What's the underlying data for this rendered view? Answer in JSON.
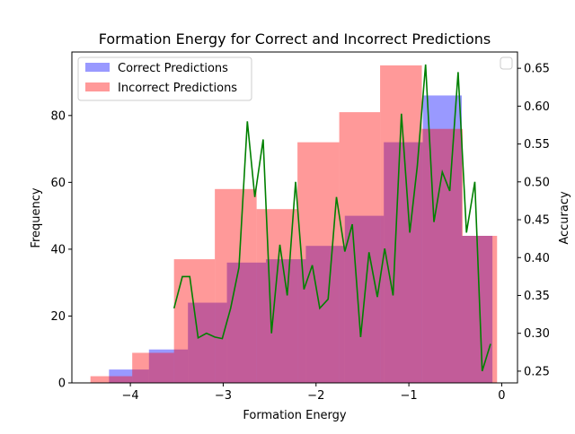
{
  "chart_data": {
    "type": "bar",
    "title": "Formation Energy for Correct and Incorrect Predictions",
    "xlabel": "Formation Energy",
    "ylabel": "Frequency",
    "y2label": "Accuracy",
    "xlim": [
      -4.63,
      0.17
    ],
    "ylim": [
      0,
      99
    ],
    "y2lim": [
      0.2345,
      0.6715
    ],
    "xticks": [
      -4,
      -3,
      -2,
      -1,
      0
    ],
    "xtick_labels": [
      "−4",
      "−3",
      "−2",
      "−1",
      "0"
    ],
    "yticks": [
      0,
      20,
      40,
      60,
      80
    ],
    "ytick_labels": [
      "0",
      "20",
      "40",
      "60",
      "80"
    ],
    "y2ticks": [
      0.25,
      0.3,
      0.35,
      0.4,
      0.45,
      0.5,
      0.55,
      0.6,
      0.65
    ],
    "y2tick_labels": [
      "0.25",
      "0.30",
      "0.35",
      "0.40",
      "0.45",
      "0.50",
      "0.55",
      "0.60",
      "0.65"
    ],
    "legend_position": "upper-left",
    "series": [
      {
        "name": "Correct Predictions",
        "color": "#0000ff",
        "opacity": 0.4,
        "bins": [
          {
            "x0": -4.23,
            "x1": -3.8,
            "value": 4
          },
          {
            "x0": -3.8,
            "x1": -3.38,
            "value": 10
          },
          {
            "x0": -3.38,
            "x1": -2.96,
            "value": 24
          },
          {
            "x0": -2.96,
            "x1": -2.54,
            "value": 36
          },
          {
            "x0": -2.54,
            "x1": -2.11,
            "value": 37
          },
          {
            "x0": -2.11,
            "x1": -1.69,
            "value": 41
          },
          {
            "x0": -1.69,
            "x1": -1.27,
            "value": 50
          },
          {
            "x0": -1.27,
            "x1": -0.85,
            "value": 72
          },
          {
            "x0": -0.85,
            "x1": -0.43,
            "value": 86
          },
          {
            "x0": -0.43,
            "x1": -0.1,
            "value": 44
          }
        ]
      },
      {
        "name": "Incorrect Predictions",
        "color": "#ff0000",
        "opacity": 0.4,
        "bins": [
          {
            "x0": -4.43,
            "x1": -3.98,
            "value": 2
          },
          {
            "x0": -3.98,
            "x1": -3.53,
            "value": 9
          },
          {
            "x0": -3.53,
            "x1": -3.09,
            "value": 37
          },
          {
            "x0": -3.09,
            "x1": -2.64,
            "value": 58
          },
          {
            "x0": -2.64,
            "x1": -2.2,
            "value": 52
          },
          {
            "x0": -2.2,
            "x1": -1.75,
            "value": 72
          },
          {
            "x0": -1.75,
            "x1": -1.31,
            "value": 81
          },
          {
            "x0": -1.31,
            "x1": -0.86,
            "value": 95
          },
          {
            "x0": -0.86,
            "x1": -0.42,
            "value": 76
          },
          {
            "x0": -0.42,
            "x1": -0.05,
            "value": 44
          }
        ]
      },
      {
        "name": "",
        "type": "line",
        "axis": "right",
        "color": "#008000",
        "x": [
          -3.53,
          -3.44,
          -3.36,
          -3.27,
          -3.18,
          -3.09,
          -3.01,
          -2.92,
          -2.83,
          -2.74,
          -2.66,
          -2.57,
          -2.48,
          -2.39,
          -2.31,
          -2.22,
          -2.13,
          -2.04,
          -1.96,
          -1.87,
          -1.78,
          -1.69,
          -1.61,
          -1.52,
          -1.43,
          -1.34,
          -1.26,
          -1.17,
          -1.08,
          -0.99,
          -0.91,
          -0.82,
          -0.73,
          -0.64,
          -0.56,
          -0.47,
          -0.38,
          -0.29,
          -0.21,
          -0.12
        ],
        "y": [
          0.333,
          0.375,
          0.375,
          0.294,
          0.3,
          0.295,
          0.293,
          0.333,
          0.387,
          0.58,
          0.48,
          0.556,
          0.3,
          0.417,
          0.35,
          0.5,
          0.358,
          0.39,
          0.333,
          0.345,
          0.48,
          0.408,
          0.444,
          0.295,
          0.407,
          0.348,
          0.412,
          0.35,
          0.59,
          0.433,
          0.52,
          0.655,
          0.447,
          0.513,
          0.488,
          0.645,
          0.433,
          0.5,
          0.25,
          0.286
        ]
      }
    ]
  }
}
